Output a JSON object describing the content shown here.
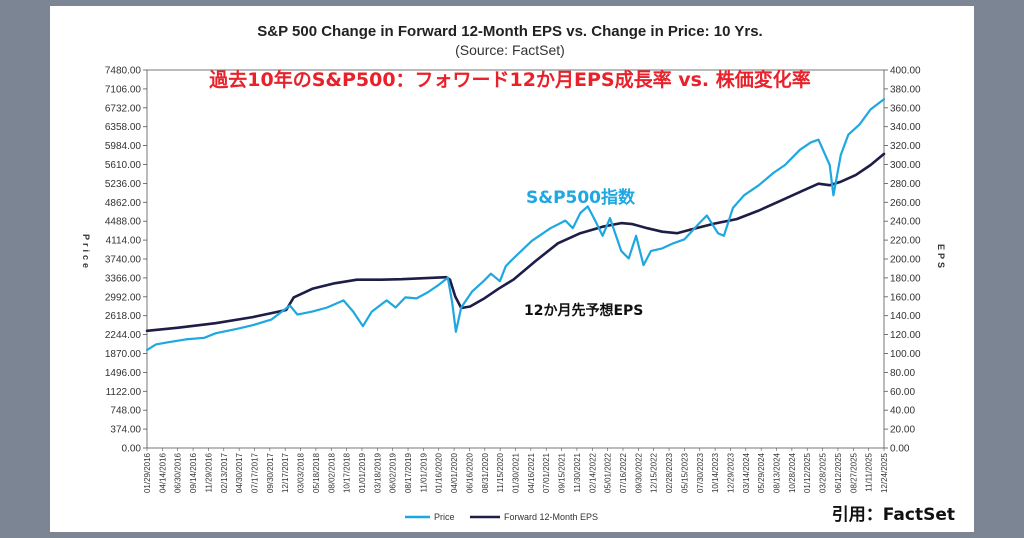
{
  "chart_data": {
    "type": "line",
    "title": "S&P 500 Change in Forward 12-Month EPS vs. Change in Price: 10 Yrs.",
    "source": "(Source: FactSet)",
    "overlay_title": "過去10年のS&P500：フォワード12か月EPS成長率 vs. 株価変化率",
    "ylabel_left": "Price",
    "ylabel_right": "EPS",
    "ylim_left": [
      0,
      7480
    ],
    "ylim_right": [
      0,
      400
    ],
    "left_ticks": [
      "0.00",
      "374.00",
      "748.00",
      "1122.00",
      "1496.00",
      "1870.00",
      "2244.00",
      "2618.00",
      "2992.00",
      "3366.00",
      "3740.00",
      "4114.00",
      "4488.00",
      "4862.00",
      "5236.00",
      "5610.00",
      "5984.00",
      "6358.00",
      "6732.00",
      "7106.00",
      "7480.00"
    ],
    "right_ticks": [
      "0.00",
      "20.00",
      "40.00",
      "60.00",
      "80.00",
      "100.00",
      "120.00",
      "140.00",
      "160.00",
      "180.00",
      "200.00",
      "220.00",
      "240.00",
      "260.00",
      "280.00",
      "300.00",
      "320.00",
      "340.00",
      "360.00",
      "380.00",
      "400.00"
    ],
    "x_labels": [
      "01/29/2016",
      "04/14/2016",
      "06/30/2016",
      "09/14/2016",
      "11/29/2016",
      "02/13/2017",
      "04/30/2017",
      "07/17/2017",
      "09/30/2017",
      "12/17/2017",
      "03/03/2018",
      "05/18/2018",
      "08/02/2018",
      "10/17/2018",
      "01/01/2019",
      "03/18/2019",
      "06/02/2019",
      "08/17/2019",
      "11/01/2019",
      "01/16/2020",
      "04/01/2020",
      "06/16/2020",
      "08/31/2020",
      "11/15/2020",
      "01/30/2021",
      "04/16/2021",
      "07/01/2021",
      "09/15/2021",
      "11/30/2021",
      "02/14/2022",
      "05/01/2022",
      "07/16/2022",
      "09/30/2022",
      "12/15/2022",
      "02/28/2023",
      "05/15/2023",
      "07/30/2023",
      "10/14/2023",
      "12/29/2023",
      "03/14/2024",
      "05/29/2024",
      "08/13/2024",
      "10/28/2024",
      "01/12/2025",
      "03/28/2025",
      "06/12/2025",
      "08/27/2025",
      "11/11/2025",
      "12/24/2025"
    ],
    "series": [
      {
        "name": "Price",
        "color": "#1ea7e1",
        "axis": "left",
        "points": [
          [
            2016.08,
            1940
          ],
          [
            2016.2,
            2050
          ],
          [
            2016.35,
            2090
          ],
          [
            2016.6,
            2150
          ],
          [
            2016.85,
            2180
          ],
          [
            2017.0,
            2270
          ],
          [
            2017.3,
            2360
          ],
          [
            2017.5,
            2430
          ],
          [
            2017.75,
            2540
          ],
          [
            2018.0,
            2820
          ],
          [
            2018.1,
            2640
          ],
          [
            2018.3,
            2700
          ],
          [
            2018.5,
            2780
          ],
          [
            2018.72,
            2920
          ],
          [
            2018.85,
            2700
          ],
          [
            2018.98,
            2410
          ],
          [
            2019.1,
            2700
          ],
          [
            2019.3,
            2920
          ],
          [
            2019.42,
            2780
          ],
          [
            2019.55,
            2980
          ],
          [
            2019.7,
            2960
          ],
          [
            2019.85,
            3080
          ],
          [
            2020.0,
            3230
          ],
          [
            2020.12,
            3370
          ],
          [
            2020.18,
            2880
          ],
          [
            2020.23,
            2300
          ],
          [
            2020.3,
            2780
          ],
          [
            2020.45,
            3100
          ],
          [
            2020.6,
            3300
          ],
          [
            2020.7,
            3450
          ],
          [
            2020.82,
            3300
          ],
          [
            2020.9,
            3600
          ],
          [
            2021.0,
            3750
          ],
          [
            2021.25,
            4100
          ],
          [
            2021.5,
            4350
          ],
          [
            2021.7,
            4500
          ],
          [
            2021.8,
            4350
          ],
          [
            2021.9,
            4650
          ],
          [
            2022.0,
            4780
          ],
          [
            2022.1,
            4500
          ],
          [
            2022.2,
            4200
          ],
          [
            2022.3,
            4550
          ],
          [
            2022.45,
            3900
          ],
          [
            2022.55,
            3750
          ],
          [
            2022.65,
            4200
          ],
          [
            2022.75,
            3620
          ],
          [
            2022.85,
            3900
          ],
          [
            2023.0,
            3950
          ],
          [
            2023.15,
            4050
          ],
          [
            2023.3,
            4130
          ],
          [
            2023.5,
            4450
          ],
          [
            2023.6,
            4600
          ],
          [
            2023.75,
            4250
          ],
          [
            2023.83,
            4200
          ],
          [
            2023.95,
            4750
          ],
          [
            2024.1,
            5000
          ],
          [
            2024.3,
            5200
          ],
          [
            2024.5,
            5450
          ],
          [
            2024.65,
            5600
          ],
          [
            2024.85,
            5900
          ],
          [
            2025.0,
            6050
          ],
          [
            2025.1,
            6100
          ],
          [
            2025.25,
            5600
          ],
          [
            2025.3,
            5000
          ],
          [
            2025.4,
            5800
          ],
          [
            2025.5,
            6200
          ],
          [
            2025.65,
            6400
          ],
          [
            2025.8,
            6700
          ],
          [
            2025.98,
            6900
          ]
        ]
      },
      {
        "name": "Forward 12-Month EPS",
        "color": "#1d1d47",
        "axis": "left",
        "points": [
          [
            2016.08,
            2320
          ],
          [
            2016.5,
            2380
          ],
          [
            2017.0,
            2470
          ],
          [
            2017.5,
            2590
          ],
          [
            2017.95,
            2730
          ],
          [
            2018.05,
            2980
          ],
          [
            2018.3,
            3150
          ],
          [
            2018.6,
            3260
          ],
          [
            2018.9,
            3330
          ],
          [
            2019.2,
            3330
          ],
          [
            2019.5,
            3340
          ],
          [
            2019.8,
            3360
          ],
          [
            2020.1,
            3380
          ],
          [
            2020.15,
            3330
          ],
          [
            2020.22,
            3000
          ],
          [
            2020.3,
            2770
          ],
          [
            2020.42,
            2800
          ],
          [
            2020.6,
            2950
          ],
          [
            2020.8,
            3150
          ],
          [
            2021.0,
            3330
          ],
          [
            2021.3,
            3700
          ],
          [
            2021.6,
            4050
          ],
          [
            2021.9,
            4250
          ],
          [
            2022.2,
            4380
          ],
          [
            2022.45,
            4450
          ],
          [
            2022.6,
            4430
          ],
          [
            2022.8,
            4350
          ],
          [
            2023.0,
            4280
          ],
          [
            2023.2,
            4250
          ],
          [
            2023.4,
            4330
          ],
          [
            2023.7,
            4440
          ],
          [
            2024.0,
            4530
          ],
          [
            2024.3,
            4700
          ],
          [
            2024.6,
            4900
          ],
          [
            2024.9,
            5100
          ],
          [
            2025.1,
            5230
          ],
          [
            2025.25,
            5200
          ],
          [
            2025.4,
            5270
          ],
          [
            2025.6,
            5400
          ],
          [
            2025.8,
            5600
          ],
          [
            2025.98,
            5820
          ]
        ]
      }
    ],
    "legend": [
      "Price",
      "Forward 12-Month EPS"
    ],
    "legend_position": "bottom",
    "annotations": {
      "price_label": "S&P500指数",
      "eps_label": "12か月先予想EPS"
    }
  },
  "credit": "引用：FactSet"
}
